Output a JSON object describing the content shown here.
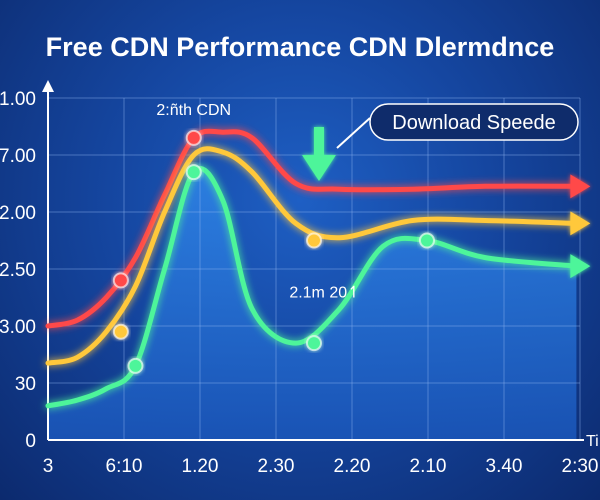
{
  "chart_data": {
    "type": "line",
    "title": "Free CDN Performance CDN Dlermdnce",
    "xlabel": "Ti",
    "ylabel": "",
    "x_tick_labels": [
      "3",
      "6:10",
      "1.20",
      "2.30",
      "2.20",
      "2.10",
      "3.40",
      "2:30"
    ],
    "y_tick_labels": [
      "0",
      "30",
      "3.00",
      "2.50",
      "2.00",
      "7.00",
      "1.00"
    ],
    "y_tick_values": [
      0,
      1,
      2,
      3,
      4,
      5,
      6
    ],
    "ylim": [
      0,
      6
    ],
    "grid": true,
    "legend_label": "Download Speede",
    "legend_position": "top-right",
    "annotations": [
      {
        "text": "2:ñth CDN",
        "x": 2,
        "y": 5.7
      },
      {
        "text": "2.1m 20↿",
        "x": 3.8,
        "y": 2.5
      }
    ],
    "x_axis_max": 7.3,
    "series": [
      {
        "color": "#ff4848",
        "x": [
          0,
          0.4,
          0.8,
          1.2,
          1.6,
          2.0,
          2.4,
          2.8,
          3.4,
          4.0,
          5.0,
          6.0,
          7.25
        ],
        "y": [
          2.0,
          2.1,
          2.5,
          3.2,
          4.3,
          5.3,
          5.4,
          5.3,
          4.5,
          4.4,
          4.4,
          4.45,
          4.45
        ],
        "markers": [
          {
            "x": 1.0,
            "y": 2.8
          },
          {
            "x": 2.0,
            "y": 5.3
          }
        ]
      },
      {
        "color": "#ffc83a",
        "x": [
          0,
          0.4,
          0.8,
          1.2,
          1.6,
          2.0,
          2.4,
          2.8,
          3.4,
          4.0,
          5.0,
          6.0,
          7.25
        ],
        "y": [
          1.35,
          1.45,
          1.9,
          2.7,
          4.0,
          5.0,
          5.05,
          4.7,
          3.8,
          3.55,
          3.85,
          3.85,
          3.8
        ],
        "markers": [
          {
            "x": 1.0,
            "y": 1.9
          },
          {
            "x": 3.65,
            "y": 3.5
          }
        ]
      },
      {
        "color": "#4df59a",
        "x": [
          0,
          0.4,
          0.8,
          1.2,
          1.6,
          2.0,
          2.4,
          2.8,
          3.4,
          4.0,
          4.6,
          5.2,
          6.0,
          7.25
        ],
        "y": [
          0.6,
          0.7,
          0.9,
          1.3,
          3.0,
          4.7,
          4.2,
          2.3,
          1.7,
          2.3,
          3.4,
          3.5,
          3.2,
          3.05
        ],
        "markers": [
          {
            "x": 1.2,
            "y": 1.3
          },
          {
            "x": 2.0,
            "y": 4.7
          },
          {
            "x": 3.65,
            "y": 1.7
          },
          {
            "x": 5.2,
            "y": 3.5
          }
        ]
      }
    ],
    "colors": {
      "area_top": "#2f86e8",
      "area_bottom": "#1a55b8",
      "grid": "#8fb4f0",
      "down_arrow": "#4df59a"
    },
    "icons": [
      "up-arrow-icon",
      "down-arrow-icon"
    ]
  }
}
